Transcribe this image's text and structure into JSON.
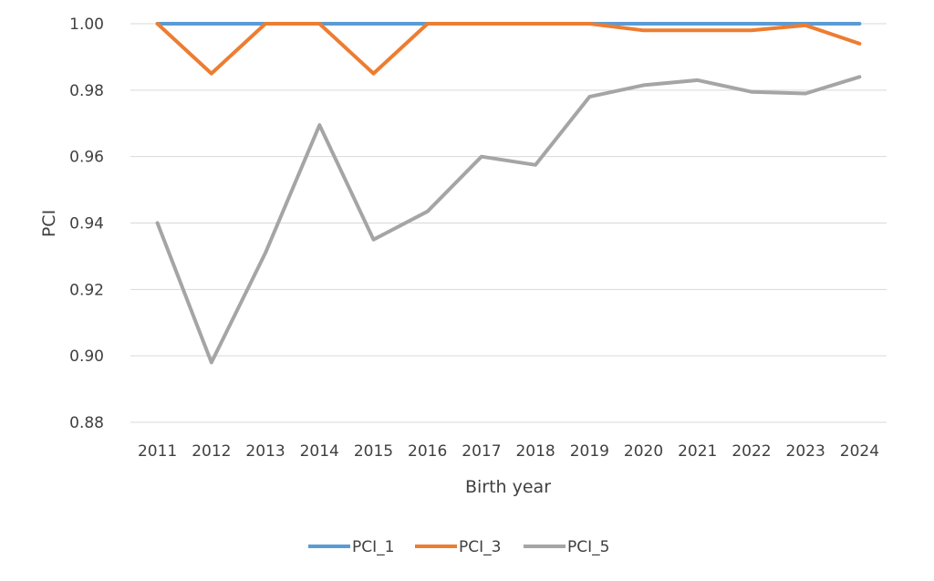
{
  "chart_data": {
    "type": "line",
    "title": "",
    "xlabel": "Birth year",
    "ylabel": "PCI",
    "categories": [
      "2011",
      "2012",
      "2013",
      "2014",
      "2015",
      "2016",
      "2017",
      "2018",
      "2019",
      "2020",
      "2021",
      "2022",
      "2023",
      "2024"
    ],
    "ylim": [
      0.88,
      1.0
    ],
    "yticks": [
      "0.88",
      "0.90",
      "0.92",
      "0.94",
      "0.96",
      "0.98",
      "1.00"
    ],
    "ytick_values": [
      0.88,
      0.9,
      0.92,
      0.94,
      0.96,
      0.98,
      1.0
    ],
    "grid": true,
    "legend_position": "bottom",
    "series": [
      {
        "name": "PCI_1",
        "color": "#5B9BD5",
        "values": [
          1.0,
          1.0,
          1.0,
          1.0,
          1.0,
          1.0,
          1.0,
          1.0,
          1.0,
          1.0,
          1.0,
          1.0,
          1.0,
          1.0
        ]
      },
      {
        "name": "PCI_3",
        "color": "#ED7D31",
        "values": [
          1.0,
          0.985,
          1.0,
          1.0,
          0.985,
          1.0,
          1.0,
          1.0,
          1.0,
          0.998,
          0.998,
          0.998,
          0.9995,
          0.994
        ]
      },
      {
        "name": "PCI_5",
        "color": "#A5A5A5",
        "values": [
          0.94,
          0.898,
          0.931,
          0.9695,
          0.935,
          0.9435,
          0.96,
          0.9575,
          0.978,
          0.9815,
          0.983,
          0.9795,
          0.979,
          0.984
        ]
      }
    ]
  }
}
